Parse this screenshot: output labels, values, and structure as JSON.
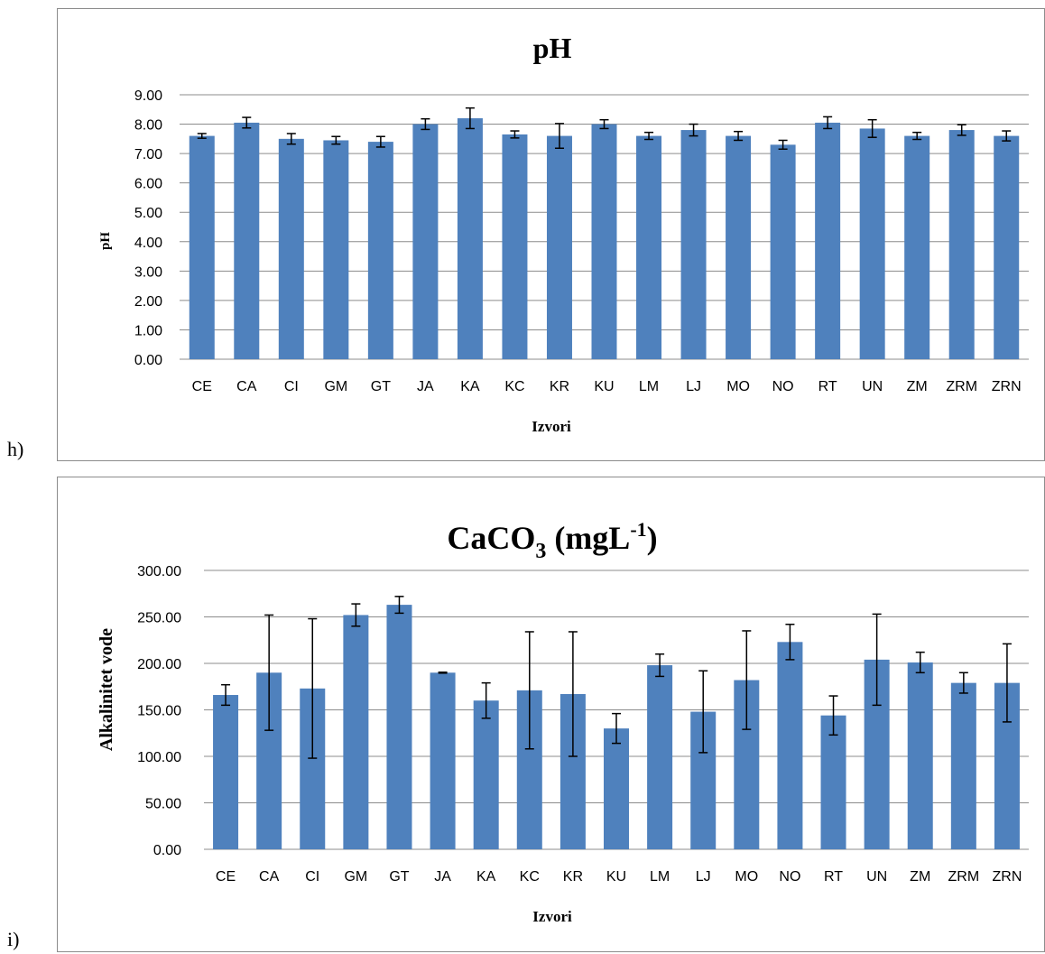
{
  "chart_data": [
    {
      "type": "bar",
      "panel_label": "h)",
      "title": "pH",
      "xlabel": "Izvori",
      "ylabel": "pH",
      "ylim": [
        0,
        9
      ],
      "yticks": [
        "0.00",
        "1.00",
        "2.00",
        "3.00",
        "4.00",
        "5.00",
        "6.00",
        "7.00",
        "8.00",
        "9.00"
      ],
      "grid": true,
      "bar_color": "#4f81bd",
      "categories": [
        "CE",
        "CA",
        "CI",
        "GM",
        "GT",
        "JA",
        "KA",
        "KC",
        "KR",
        "KU",
        "LM",
        "LJ",
        "MO",
        "NO",
        "RT",
        "UN",
        "ZM",
        "ZRM",
        "ZRN"
      ],
      "values": [
        7.6,
        8.05,
        7.5,
        7.45,
        7.4,
        8.0,
        8.2,
        7.65,
        7.6,
        8.0,
        7.6,
        7.8,
        7.6,
        7.3,
        8.05,
        7.85,
        7.6,
        7.8,
        7.6
      ],
      "errors": [
        0.08,
        0.18,
        0.18,
        0.13,
        0.18,
        0.18,
        0.35,
        0.12,
        0.42,
        0.15,
        0.12,
        0.2,
        0.15,
        0.15,
        0.2,
        0.3,
        0.12,
        0.18,
        0.17
      ]
    },
    {
      "type": "bar",
      "panel_label": "i)",
      "title": "CaCO3 (mgL-1)",
      "title_parts": {
        "main": "CaCO",
        "sub": "3",
        "rest": " (mgL",
        "sup": "-1",
        "end": ")"
      },
      "xlabel": "Izvori",
      "ylabel": "Alkalinitet vode",
      "ylim": [
        0,
        300
      ],
      "yticks": [
        "0.00",
        "50.00",
        "100.00",
        "150.00",
        "200.00",
        "250.00",
        "300.00"
      ],
      "grid": true,
      "bar_color": "#4f81bd",
      "categories": [
        "CE",
        "CA",
        "CI",
        "GM",
        "GT",
        "JA",
        "KA",
        "KC",
        "KR",
        "KU",
        "LM",
        "LJ",
        "MO",
        "NO",
        "RT",
        "UN",
        "ZM",
        "ZRM",
        "ZRN"
      ],
      "values": [
        166,
        190,
        173,
        252,
        263,
        190,
        160,
        171,
        167,
        130,
        198,
        148,
        182,
        223,
        144,
        204,
        201,
        179,
        179
      ],
      "errors": [
        11,
        62,
        75,
        12,
        9,
        0.5,
        19,
        63,
        67,
        16,
        12,
        44,
        53,
        19,
        21,
        49,
        11,
        11,
        42
      ]
    }
  ]
}
